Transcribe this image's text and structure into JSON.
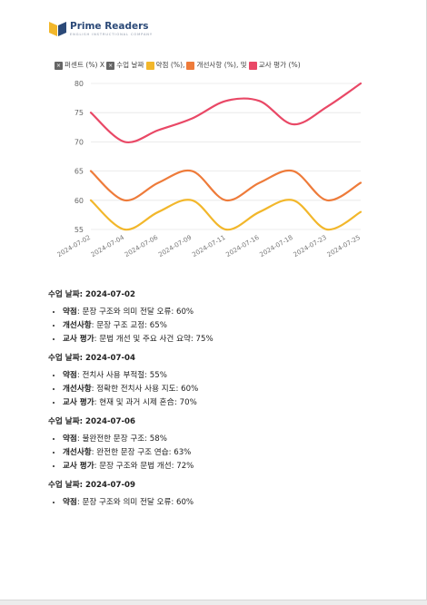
{
  "header": {
    "brand_name": "Prime Readers",
    "brand_tagline": "ENGLISH INSTRUCTIONAL COMPANY"
  },
  "legend": {
    "items": [
      {
        "mark": "x",
        "label": "퍼센트 (%) X"
      },
      {
        "mark": "x",
        "label": "수업 날짜"
      },
      {
        "mark": "color",
        "color": "#f2b72b",
        "label": "약점 (%),"
      },
      {
        "mark": "color",
        "color": "#ee7b3a",
        "label": "개선사항 (%), 및"
      },
      {
        "mark": "color",
        "color": "#e94866",
        "label": "교사 평가 (%)"
      }
    ]
  },
  "chart_data": {
    "type": "line",
    "x": [
      "2024-07-02",
      "2024-07-04",
      "2024-07-06",
      "2024-07-09",
      "2024-07-11",
      "2024-07-16",
      "2024-07-18",
      "2024-07-23",
      "2024-07-25"
    ],
    "ylim": [
      55,
      80
    ],
    "yticks": [
      55,
      60,
      65,
      70,
      75,
      80
    ],
    "grid": true,
    "legend_position": "top-left",
    "series": [
      {
        "name": "약점 (%)",
        "color": "#f2b72b",
        "values": [
          60,
          55,
          58,
          60,
          55,
          58,
          60,
          55,
          58
        ]
      },
      {
        "name": "개선사항 (%)",
        "color": "#ee7b3a",
        "values": [
          65,
          60,
          63,
          65,
          60,
          63,
          65,
          60,
          63
        ]
      },
      {
        "name": "교사 평가 (%)",
        "color": "#e94866",
        "values": [
          75,
          70,
          72,
          74,
          77,
          77,
          73,
          76,
          80
        ]
      }
    ]
  },
  "sessions": [
    {
      "title": "수업 날짜: 2024-07-02",
      "items": [
        {
          "label": "약점",
          "text": ": 문장 구조와 의미 전달 오류: 60%"
        },
        {
          "label": "개선사항",
          "text": ": 문장 구조 교정: 65%"
        },
        {
          "label": "교사 평가",
          "text": ": 문법 개선 및 주요 사건 요약: 75%"
        }
      ]
    },
    {
      "title": "수업 날짜: 2024-07-04",
      "items": [
        {
          "label": "약점",
          "text": ": 전치사 사용 부적절: 55%"
        },
        {
          "label": "개선사항",
          "text": ": 정확한 전치사 사용 지도: 60%"
        },
        {
          "label": "교사 평가",
          "text": ": 현재 및 과거 시제 혼合: 70%"
        }
      ]
    },
    {
      "title": "수업 날짜: 2024-07-06",
      "items": [
        {
          "label": "약점",
          "text": ": 불완전한 문장 구조: 58%"
        },
        {
          "label": "개선사항",
          "text": ": 완전한 문장 구조 연습: 63%"
        },
        {
          "label": "교사 평가",
          "text": ": 문장 구조와 문법 개선: 72%"
        }
      ]
    },
    {
      "title": "수업 날짜: 2024-07-09",
      "items": [
        {
          "label": "약점",
          "text": ": 문장 구조와 의미 전달 오류: 60%"
        }
      ]
    }
  ]
}
